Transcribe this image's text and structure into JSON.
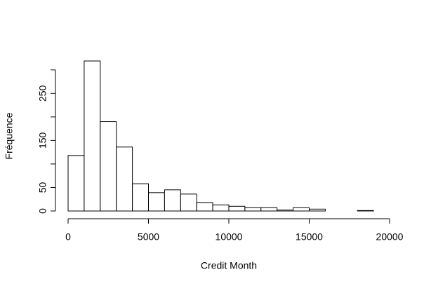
{
  "chart_data": {
    "type": "histogram",
    "x_label": "Credit Month",
    "y_label": "Fréquence",
    "bins": [
      0,
      1000,
      2000,
      3000,
      4000,
      5000,
      6000,
      7000,
      8000,
      9000,
      10000,
      11000,
      12000,
      13000,
      14000,
      15000,
      16000,
      17000,
      18000,
      19000
    ],
    "values": [
      118,
      319,
      190,
      136,
      58,
      39,
      45,
      36,
      18,
      13,
      10,
      7,
      7,
      2,
      7,
      4,
      0,
      0,
      1
    ],
    "color": "#ffffff",
    "edgecolor": "#000000",
    "xlim": [
      0,
      20000
    ],
    "xticks": [
      0,
      5000,
      10000,
      15000,
      20000
    ],
    "ylim": [
      0,
      319
    ],
    "yticks": [
      0,
      50,
      100,
      150,
      200,
      250,
      300
    ]
  }
}
